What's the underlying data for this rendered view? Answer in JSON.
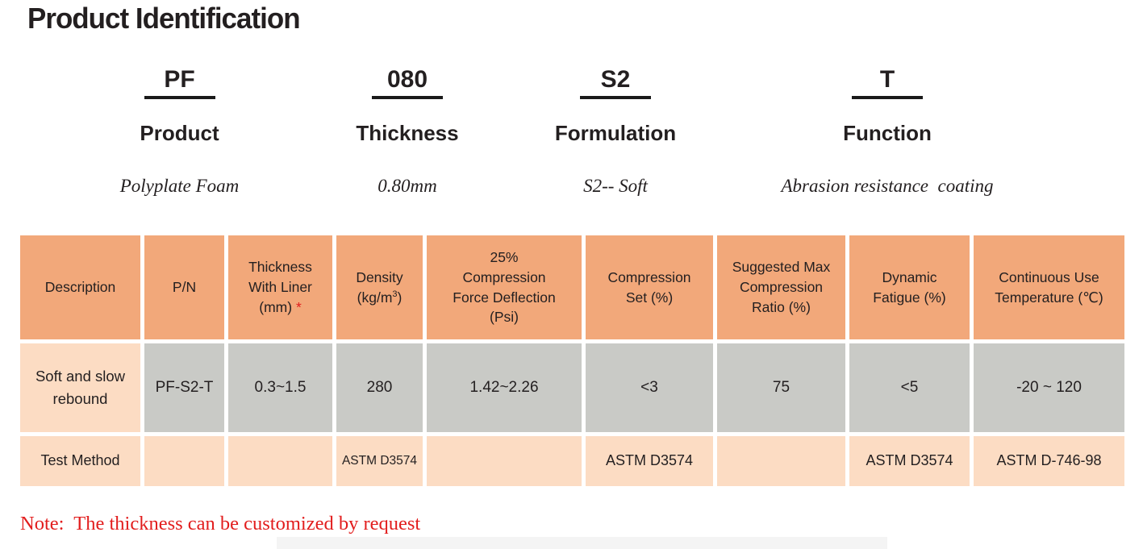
{
  "page": {
    "title": "Product Identification",
    "note": "Note:  The thickness can be customized by request"
  },
  "code_groups": [
    {
      "code": "PF",
      "label": "Product",
      "value": "Polyplate Foam"
    },
    {
      "code": "080",
      "label": "Thickness",
      "value": "0.80mm"
    },
    {
      "code": "S2",
      "label": "Formulation",
      "value": "S2-- Soft"
    },
    {
      "code": "T",
      "label": "Function",
      "value": "Abrasion resistance  coating"
    }
  ],
  "table": {
    "headers": {
      "description": "Description",
      "pn": "P/N",
      "thickness_l1": "Thickness",
      "thickness_l2": "With Liner",
      "thickness_l3": "(mm) ",
      "thickness_star": "*",
      "density_l1": "Density",
      "density_pre": "(kg/m",
      "density_sup": "3",
      "density_post": ")",
      "cfd_l1": "25%",
      "cfd_l2": "Compression",
      "cfd_l3": "Force Deflection",
      "cfd_l4": "(Psi)",
      "cset_l1": "Compression",
      "cset_l2": "Set (%)",
      "smax_l1": "Suggested Max",
      "smax_l2": "Compression",
      "smax_l3": "Ratio (%)",
      "dyn_l1": "Dynamic",
      "dyn_l2": "Fatigue (%)",
      "cut_l1": "Continuous Use",
      "cut_l2": "Temperature (℃)"
    },
    "data_row": [
      "Soft and slow rebound",
      "PF-S2-T",
      "0.3~1.5",
      "280",
      "1.42~2.26",
      "<3",
      "75",
      "<5",
      "-20 ~ 120"
    ],
    "test_row": [
      "Test Method",
      "",
      "",
      "ASTM D3574",
      "",
      "ASTM D3574",
      "",
      "ASTM D3574",
      "ASTM D-746-98"
    ]
  },
  "colors": {
    "header_orange": "#f2a87a",
    "row_peach": "#fcdcc3",
    "row_grey": "#c9cac6",
    "note_red": "#e21d1d",
    "text_black": "#231f20"
  }
}
